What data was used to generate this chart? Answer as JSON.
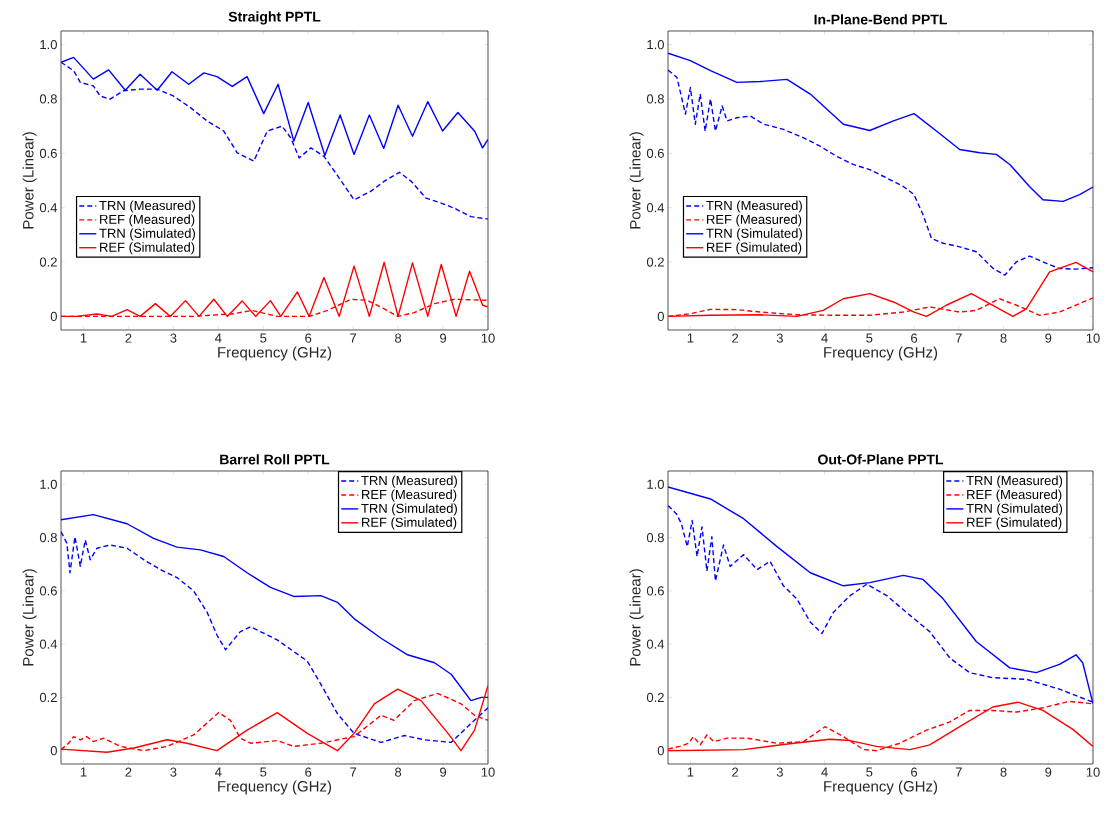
{
  "chart_data": [
    {
      "type": "line",
      "title": "Straight PPTL",
      "xlabel": "Frequency (GHz)",
      "ylabel": "Power (Linear)",
      "xlim": [
        0.5,
        10
      ],
      "ylim": [
        -0.05,
        1.05
      ],
      "xticks": [
        1,
        2,
        3,
        4,
        5,
        6,
        7,
        8,
        9,
        10
      ],
      "yticks": [
        0,
        {
          "value": 0.2,
          "label": "0.2"
        },
        {
          "value": 0.4,
          "label": "0.4"
        },
        {
          "value": 0.6,
          "label": "0.6"
        },
        {
          "value": 0.8,
          "label": "0.8"
        },
        {
          "value": 1,
          "label": "1.0"
        }
      ],
      "legend": "center left",
      "series": [
        {
          "name": "TRN (Measured)",
          "color": "#0000ff",
          "line_style": "dashed",
          "x": [
            0.5,
            0.78,
            0.93,
            1.22,
            1.37,
            1.59,
            1.89,
            2.26,
            2.64,
            3.0,
            3.38,
            3.75,
            4.12,
            4.42,
            4.79,
            5.09,
            5.42,
            5.61,
            5.8,
            6.06,
            6.35,
            6.69,
            7.02,
            7.39,
            7.69,
            8.03,
            8.29,
            8.62,
            8.96,
            9.25,
            9.62,
            10
          ],
          "values": [
            0.935,
            0.904,
            0.861,
            0.848,
            0.811,
            0.799,
            0.83,
            0.836,
            0.836,
            0.811,
            0.768,
            0.719,
            0.682,
            0.602,
            0.571,
            0.682,
            0.7,
            0.657,
            0.583,
            0.62,
            0.589,
            0.509,
            0.429,
            0.46,
            0.497,
            0.53,
            0.497,
            0.435,
            0.417,
            0.398,
            0.367,
            0.358
          ]
        },
        {
          "name": "REF (Measured)",
          "color": "#ff0000",
          "line_style": "dashed",
          "x": [
            0.5,
            3.45,
            4.35,
            4.75,
            5.31,
            6.02,
            6.43,
            6.95,
            7.32,
            7.69,
            7.99,
            8.36,
            8.81,
            9.25,
            10
          ],
          "values": [
            0,
            0,
            0.01,
            0.022,
            0,
            0,
            0.022,
            0.063,
            0.059,
            0.028,
            0,
            0.014,
            0.047,
            0.063,
            0.059
          ]
        },
        {
          "name": "TRN (Simulated)",
          "color": "#0000ff",
          "line_style": "solid",
          "x": [
            0.5,
            0.78,
            1.22,
            1.56,
            1.93,
            2.26,
            2.64,
            2.97,
            3.34,
            3.68,
            3.97,
            4.31,
            4.64,
            5.01,
            5.33,
            5.68,
            6.0,
            6.37,
            6.71,
            7.02,
            7.36,
            7.68,
            8.0,
            8.32,
            8.66,
            8.99,
            9.33,
            9.7,
            9.88,
            10
          ],
          "values": [
            0.935,
            0.953,
            0.873,
            0.907,
            0.832,
            0.891,
            0.832,
            0.9,
            0.854,
            0.896,
            0.882,
            0.846,
            0.882,
            0.746,
            0.854,
            0.645,
            0.787,
            0.592,
            0.741,
            0.596,
            0.741,
            0.618,
            0.777,
            0.663,
            0.79,
            0.682,
            0.75,
            0.682,
            0.62,
            0.651
          ]
        },
        {
          "name": "REF (Simulated)",
          "color": "#ff0000",
          "line_style": "solid",
          "x": [
            0.5,
            0.85,
            1.3,
            1.63,
            1.97,
            2.26,
            2.6,
            2.93,
            3.27,
            3.57,
            3.9,
            4.2,
            4.53,
            4.83,
            5.16,
            5.39,
            5.76,
            6.02,
            6.35,
            6.69,
            7.02,
            7.36,
            7.69,
            8.0,
            8.32,
            8.66,
            8.96,
            9.29,
            9.59,
            9.88,
            10
          ],
          "values": [
            0,
            0,
            0.009,
            0,
            0.025,
            0,
            0.047,
            0,
            0.058,
            0,
            0.063,
            0,
            0.057,
            0,
            0.058,
            0,
            0.09,
            0,
            0.143,
            0,
            0.185,
            0,
            0.199,
            0,
            0.197,
            0,
            0.191,
            0,
            0.166,
            0.041,
            0.035
          ]
        }
      ]
    },
    {
      "type": "line",
      "title": "In-Plane-Bend PPTL",
      "xlabel": "Frequency (GHz)",
      "ylabel": "Power (Linear)",
      "xlim": [
        0.5,
        10
      ],
      "ylim": [
        -0.05,
        1.05
      ],
      "xticks": [
        1,
        2,
        3,
        4,
        5,
        6,
        7,
        8,
        9,
        10
      ],
      "yticks": [
        0,
        {
          "value": 0.2,
          "label": "0.2"
        },
        {
          "value": 0.4,
          "label": "0.4"
        },
        {
          "value": 0.6,
          "label": "0.6"
        },
        {
          "value": 0.8,
          "label": "0.8"
        },
        {
          "value": 1,
          "label": "1.0"
        }
      ],
      "legend": "center left",
      "series": [
        {
          "name": "TRN (Measured)",
          "color": "#0000ff",
          "line_style": "dashed",
          "x": [
            0.5,
            0.7,
            0.89,
            1.0,
            1.11,
            1.22,
            1.33,
            1.45,
            1.56,
            1.71,
            1.82,
            2.04,
            2.34,
            2.64,
            3.08,
            3.53,
            3.9,
            4.27,
            4.64,
            5.01,
            5.39,
            5.76,
            6.0,
            6.2,
            6.39,
            6.65,
            7.02,
            7.39,
            7.77,
            8.03,
            8.29,
            8.58,
            8.96,
            9.25,
            9.62,
            10
          ],
          "values": [
            0.906,
            0.879,
            0.744,
            0.842,
            0.707,
            0.818,
            0.682,
            0.8,
            0.682,
            0.774,
            0.719,
            0.731,
            0.737,
            0.707,
            0.688,
            0.657,
            0.626,
            0.589,
            0.559,
            0.54,
            0.509,
            0.478,
            0.448,
            0.374,
            0.287,
            0.269,
            0.256,
            0.238,
            0.176,
            0.152,
            0.201,
            0.222,
            0.195,
            0.176,
            0.174,
            0.179
          ]
        },
        {
          "name": "REF (Measured)",
          "color": "#ff0000",
          "line_style": "dashed",
          "x": [
            0.5,
            1.0,
            1.45,
            2.04,
            2.56,
            3.38,
            4.42,
            5.01,
            5.76,
            6.35,
            7.02,
            7.39,
            7.91,
            8.29,
            8.81,
            9.25,
            10
          ],
          "values": [
            0,
            0.01,
            0.026,
            0.025,
            0.016,
            0.006,
            0.004,
            0.004,
            0.016,
            0.035,
            0.016,
            0.022,
            0.065,
            0.041,
            0.004,
            0.016,
            0.068
          ]
        },
        {
          "name": "TRN (Simulated)",
          "color": "#0000ff",
          "line_style": "solid",
          "x": [
            0.5,
            1.0,
            1.45,
            2.04,
            2.56,
            3.16,
            3.68,
            4.42,
            5.01,
            5.54,
            6.0,
            6.5,
            7.02,
            7.47,
            7.84,
            8.14,
            8.58,
            8.88,
            9.33,
            9.7,
            10
          ],
          "values": [
            0.968,
            0.941,
            0.904,
            0.861,
            0.864,
            0.872,
            0.818,
            0.707,
            0.684,
            0.719,
            0.746,
            0.682,
            0.614,
            0.602,
            0.596,
            0.559,
            0.478,
            0.429,
            0.423,
            0.448,
            0.476
          ]
        },
        {
          "name": "REF (Simulated)",
          "color": "#ff0000",
          "line_style": "solid",
          "x": [
            0.5,
            1.45,
            2.56,
            3.38,
            3.97,
            4.42,
            5.01,
            5.54,
            6.0,
            6.28,
            6.72,
            7.28,
            7.69,
            8.21,
            8.51,
            9.03,
            9.62,
            10
          ],
          "values": [
            0,
            0.004,
            0.006,
            0,
            0.022,
            0.065,
            0.084,
            0.053,
            0.016,
            0,
            0.041,
            0.084,
            0.047,
            0,
            0.028,
            0.164,
            0.199,
            0.164
          ]
        }
      ]
    },
    {
      "type": "line",
      "title": "Barrel Roll PPTL",
      "xlabel": "Frequency (GHz)",
      "ylabel": "Power (Linear)",
      "xlim": [
        0.5,
        10
      ],
      "ylim": [
        -0.05,
        1.05
      ],
      "xticks": [
        1,
        2,
        3,
        4,
        5,
        6,
        7,
        8,
        9,
        10
      ],
      "yticks": [
        0,
        {
          "value": 0.2,
          "label": "0.2"
        },
        {
          "value": 0.4,
          "label": "0.4"
        },
        {
          "value": 0.6,
          "label": "0.6"
        },
        {
          "value": 0.8,
          "label": "0.8"
        },
        {
          "value": 1,
          "label": "1.0"
        }
      ],
      "legend": "top right",
      "series": [
        {
          "name": "TRN (Measured)",
          "color": "#0000ff",
          "line_style": "dashed",
          "x": [
            0.5,
            0.63,
            0.7,
            0.81,
            0.93,
            1.04,
            1.15,
            1.3,
            1.59,
            1.97,
            2.34,
            2.71,
            3.08,
            3.45,
            3.75,
            3.97,
            4.16,
            4.49,
            4.72,
            5.31,
            5.98,
            6.28,
            6.65,
            7.02,
            7.62,
            8.14,
            8.58,
            9.18,
            9.62,
            10
          ],
          "values": [
            0.822,
            0.779,
            0.668,
            0.803,
            0.692,
            0.791,
            0.717,
            0.76,
            0.772,
            0.76,
            0.717,
            0.68,
            0.65,
            0.6,
            0.52,
            0.434,
            0.379,
            0.447,
            0.465,
            0.416,
            0.336,
            0.25,
            0.139,
            0.065,
            0.031,
            0.057,
            0.041,
            0.031,
            0.102,
            0.161
          ]
        },
        {
          "name": "REF (Measured)",
          "color": "#ff0000",
          "line_style": "dashed",
          "x": [
            0.5,
            0.67,
            0.78,
            0.93,
            1.07,
            1.22,
            1.45,
            1.82,
            2.34,
            2.86,
            3.45,
            4.01,
            4.27,
            4.49,
            4.72,
            5.31,
            5.68,
            6.28,
            7.02,
            7.62,
            7.91,
            8.36,
            8.88,
            9.4,
            9.7,
            10
          ],
          "values": [
            0.004,
            0.028,
            0.053,
            0.041,
            0.053,
            0.034,
            0.047,
            0.016,
            0,
            0.016,
            0.059,
            0.143,
            0.114,
            0.047,
            0.028,
            0.038,
            0.016,
            0.028,
            0.053,
            0.133,
            0.114,
            0.188,
            0.215,
            0.176,
            0.133,
            0.114
          ]
        },
        {
          "name": "TRN (Simulated)",
          "color": "#0000ff",
          "line_style": "solid",
          "x": [
            0.5,
            1.22,
            1.97,
            2.56,
            3.08,
            3.6,
            4.12,
            4.64,
            5.16,
            5.68,
            6.28,
            6.65,
            7.02,
            7.62,
            8.21,
            8.81,
            9.18,
            9.62,
            9.85,
            10
          ],
          "values": [
            0.867,
            0.886,
            0.852,
            0.797,
            0.764,
            0.754,
            0.729,
            0.668,
            0.613,
            0.579,
            0.582,
            0.557,
            0.496,
            0.422,
            0.36,
            0.33,
            0.287,
            0.188,
            0.2,
            0.2
          ]
        },
        {
          "name": "REF (Simulated)",
          "color": "#ff0000",
          "line_style": "solid",
          "x": [
            0.5,
            1.52,
            2.12,
            2.86,
            3.3,
            3.97,
            4.64,
            5.31,
            5.98,
            6.65,
            7.02,
            7.47,
            7.99,
            8.51,
            9.11,
            9.4,
            9.7,
            10
          ],
          "values": [
            0.006,
            -0.006,
            0.01,
            0.041,
            0.028,
            0,
            0.077,
            0.143,
            0.065,
            0,
            0.065,
            0.176,
            0.231,
            0.188,
            0.065,
            0,
            0.077,
            0.244
          ]
        }
      ]
    },
    {
      "type": "line",
      "title": "Out-Of-Plane PPTL",
      "xlabel": "Frequency (GHz)",
      "ylabel": "Power (Linear)",
      "xlim": [
        0.5,
        10
      ],
      "ylim": [
        -0.05,
        1.05
      ],
      "xticks": [
        1,
        2,
        3,
        4,
        5,
        6,
        7,
        8,
        9,
        10
      ],
      "yticks": [
        0,
        {
          "value": 0.2,
          "label": "0.2"
        },
        {
          "value": 0.4,
          "label": "0.4"
        },
        {
          "value": 0.6,
          "label": "0.6"
        },
        {
          "value": 0.8,
          "label": "0.8"
        },
        {
          "value": 1,
          "label": "1.0"
        }
      ],
      "legend": "top right",
      "series": [
        {
          "name": "TRN (Measured)",
          "color": "#0000ff",
          "line_style": "dashed",
          "x": [
            0.5,
            0.69,
            0.8,
            0.93,
            1.04,
            1.15,
            1.26,
            1.37,
            1.48,
            1.56,
            1.74,
            1.89,
            2.19,
            2.49,
            2.78,
            3.08,
            3.38,
            3.68,
            3.94,
            4.2,
            4.57,
            4.94,
            5.39,
            5.91,
            6.35,
            6.8,
            7.24,
            7.76,
            8.51,
            9.25,
            10
          ],
          "values": [
            0.92,
            0.889,
            0.852,
            0.766,
            0.864,
            0.729,
            0.84,
            0.674,
            0.803,
            0.637,
            0.772,
            0.692,
            0.736,
            0.68,
            0.711,
            0.619,
            0.57,
            0.483,
            0.44,
            0.52,
            0.582,
            0.625,
            0.582,
            0.508,
            0.447,
            0.348,
            0.293,
            0.274,
            0.268,
            0.231,
            0.182
          ]
        },
        {
          "name": "REF (Measured)",
          "color": "#ff0000",
          "line_style": "dashed",
          "x": [
            0.5,
            0.76,
            0.96,
            1.07,
            1.22,
            1.37,
            1.52,
            1.82,
            2.27,
            2.93,
            3.53,
            4.01,
            4.42,
            4.87,
            5.16,
            5.68,
            6.28,
            6.8,
            7.24,
            7.76,
            8.29,
            8.88,
            9.47,
            10
          ],
          "values": [
            0.006,
            0.016,
            0.028,
            0.053,
            0.022,
            0.059,
            0.034,
            0.047,
            0.047,
            0.028,
            0.034,
            0.09,
            0.053,
            0.004,
            0,
            0.028,
            0.077,
            0.108,
            0.151,
            0.151,
            0.145,
            0.161,
            0.185,
            0.176
          ]
        },
        {
          "name": "TRN (Simulated)",
          "color": "#0000ff",
          "line_style": "solid",
          "x": [
            0.5,
            1.45,
            2.19,
            2.93,
            3.68,
            4.42,
            5.01,
            5.76,
            6.2,
            6.65,
            7.39,
            8.14,
            8.73,
            9.25,
            9.62,
            9.77,
            10
          ],
          "values": [
            0.99,
            0.945,
            0.871,
            0.767,
            0.668,
            0.619,
            0.631,
            0.658,
            0.643,
            0.57,
            0.41,
            0.311,
            0.293,
            0.324,
            0.36,
            0.33,
            0.176
          ]
        },
        {
          "name": "REF (Simulated)",
          "color": "#ff0000",
          "line_style": "solid",
          "x": [
            0.5,
            2.19,
            3.31,
            4.12,
            4.57,
            5.16,
            5.91,
            6.35,
            7.02,
            7.76,
            8.32,
            8.88,
            9.55,
            10
          ],
          "values": [
            0,
            0.004,
            0.028,
            0.043,
            0.038,
            0.016,
            0.004,
            0.022,
            0.09,
            0.164,
            0.182,
            0.151,
            0.08,
            0.016
          ]
        }
      ]
    }
  ]
}
